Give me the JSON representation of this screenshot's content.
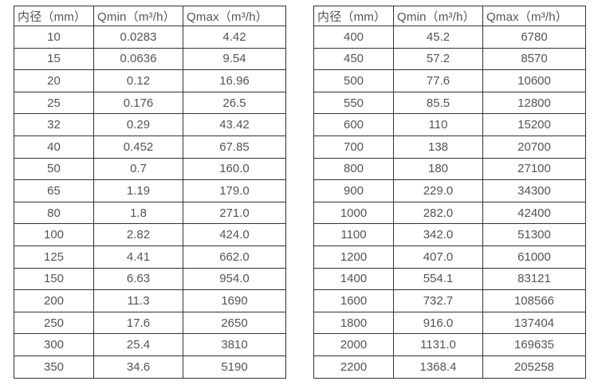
{
  "colors": {
    "background": "#ffffff",
    "border": "#333333",
    "text": "#545454"
  },
  "table_left": {
    "headers": [
      "内径（mm）",
      "Qmin（m³/h）",
      "Qmax（m³/h）"
    ],
    "rows": [
      [
        "10",
        "0.0283",
        "4.42"
      ],
      [
        "15",
        "0.0636",
        "9.54"
      ],
      [
        "20",
        "0.12",
        "16.96"
      ],
      [
        "25",
        "0.176",
        "26.5"
      ],
      [
        "32",
        "0.29",
        "43.42"
      ],
      [
        "40",
        "0.452",
        "67.85"
      ],
      [
        "50",
        "0.7",
        "160.0"
      ],
      [
        "65",
        "1.19",
        "179.0"
      ],
      [
        "80",
        "1.8",
        "271.0"
      ],
      [
        "100",
        "2.82",
        "424.0"
      ],
      [
        "125",
        "4.41",
        "662.0"
      ],
      [
        "150",
        "6.63",
        "954.0"
      ],
      [
        "200",
        "11.3",
        "1690"
      ],
      [
        "250",
        "17.6",
        "2650"
      ],
      [
        "300",
        "25.4",
        "3810"
      ],
      [
        "350",
        "34.6",
        "5190"
      ]
    ]
  },
  "table_right": {
    "headers": [
      "内径（mm）",
      "Qmin（m³/h）",
      "Qmax（m³/h）"
    ],
    "rows": [
      [
        "400",
        "45.2",
        "6780"
      ],
      [
        "450",
        "57.2",
        "8570"
      ],
      [
        "500",
        "77.6",
        "10600"
      ],
      [
        "550",
        "85.5",
        "12800"
      ],
      [
        "600",
        "110",
        "15200"
      ],
      [
        "700",
        "138",
        "20700"
      ],
      [
        "800",
        "180",
        "27100"
      ],
      [
        "900",
        "229.0",
        "34300"
      ],
      [
        "1000",
        "282.0",
        "42400"
      ],
      [
        "1100",
        "342.0",
        "51300"
      ],
      [
        "1200",
        "407.0",
        "61000"
      ],
      [
        "1400",
        "554.1",
        "83121"
      ],
      [
        "1600",
        "732.7",
        "108566"
      ],
      [
        "1800",
        "916.0",
        "137404"
      ],
      [
        "2000",
        "1131.0",
        "169635"
      ],
      [
        "2200",
        "1368.4",
        "205258"
      ]
    ]
  }
}
